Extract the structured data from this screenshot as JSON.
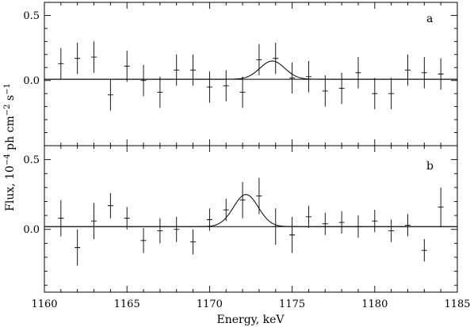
{
  "chart_data": {
    "type": "scatter",
    "xlabel": "Energy, keV",
    "ylabel_main": "Flux, 10",
    "ylabel_exp": "−4",
    "ylabel_units": " ph cm",
    "ylabel_cm_exp": "−2",
    "ylabel_s": " s",
    "ylabel_s_exp": "−1",
    "xlim": [
      1160,
      1185
    ],
    "x_ticks": [
      1160,
      1165,
      1170,
      1175,
      1180,
      1185
    ],
    "x_tick_labels": [
      "1160",
      "1165",
      "1170",
      "1175",
      "1180",
      "1185"
    ],
    "panels": [
      {
        "label": "a",
        "ylim": [
          -0.5,
          0.6
        ],
        "y_ticks": [
          0.5,
          0.0
        ],
        "y_tick_labels": [
          "0.5",
          "0.0"
        ],
        "baseline": 0.01,
        "line": {
          "center": 1173.8,
          "amplitude": 0.14,
          "sigma": 0.75
        },
        "points": [
          {
            "x": 1161,
            "y": 0.13,
            "err": 0.12
          },
          {
            "x": 1162,
            "y": 0.17,
            "err": 0.12
          },
          {
            "x": 1163,
            "y": 0.18,
            "err": 0.12
          },
          {
            "x": 1164,
            "y": -0.11,
            "err": 0.12
          },
          {
            "x": 1165,
            "y": 0.11,
            "err": 0.12
          },
          {
            "x": 1166,
            "y": 0.0,
            "err": 0.12
          },
          {
            "x": 1167,
            "y": -0.09,
            "err": 0.12
          },
          {
            "x": 1168,
            "y": 0.08,
            "err": 0.12
          },
          {
            "x": 1169,
            "y": 0.08,
            "err": 0.12
          },
          {
            "x": 1170,
            "y": -0.05,
            "err": 0.12
          },
          {
            "x": 1171,
            "y": -0.04,
            "err": 0.12
          },
          {
            "x": 1172,
            "y": -0.09,
            "err": 0.12
          },
          {
            "x": 1173,
            "y": 0.16,
            "err": 0.12
          },
          {
            "x": 1174,
            "y": 0.17,
            "err": 0.12
          },
          {
            "x": 1175,
            "y": 0.02,
            "err": 0.12
          },
          {
            "x": 1176,
            "y": 0.03,
            "err": 0.12
          },
          {
            "x": 1177,
            "y": -0.08,
            "err": 0.12
          },
          {
            "x": 1178,
            "y": -0.06,
            "err": 0.12
          },
          {
            "x": 1179,
            "y": 0.06,
            "err": 0.12
          },
          {
            "x": 1180,
            "y": -0.1,
            "err": 0.12
          },
          {
            "x": 1181,
            "y": -0.1,
            "err": 0.12
          },
          {
            "x": 1182,
            "y": 0.08,
            "err": 0.12
          },
          {
            "x": 1183,
            "y": 0.06,
            "err": 0.12
          },
          {
            "x": 1184,
            "y": 0.05,
            "err": 0.12
          }
        ]
      },
      {
        "label": "b",
        "ylim": [
          -0.45,
          0.6
        ],
        "y_ticks": [
          0.5,
          0.0
        ],
        "y_tick_labels": [
          "0.5",
          "0.0"
        ],
        "baseline": 0.02,
        "line": {
          "center": 1172.2,
          "amplitude": 0.23,
          "sigma": 0.75
        },
        "points": [
          {
            "x": 1161,
            "y": 0.08,
            "err": 0.13
          },
          {
            "x": 1162,
            "y": -0.13,
            "err": 0.13
          },
          {
            "x": 1163,
            "y": 0.06,
            "err": 0.13
          },
          {
            "x": 1164,
            "y": 0.17,
            "err": 0.09
          },
          {
            "x": 1165,
            "y": 0.08,
            "err": 0.08
          },
          {
            "x": 1166,
            "y": -0.08,
            "err": 0.09
          },
          {
            "x": 1167,
            "y": -0.01,
            "err": 0.09
          },
          {
            "x": 1168,
            "y": 0.0,
            "err": 0.09
          },
          {
            "x": 1169,
            "y": -0.09,
            "err": 0.09
          },
          {
            "x": 1170,
            "y": 0.07,
            "err": 0.08
          },
          {
            "x": 1171,
            "y": 0.14,
            "err": 0.08
          },
          {
            "x": 1172,
            "y": 0.21,
            "err": 0.13
          },
          {
            "x": 1173,
            "y": 0.24,
            "err": 0.13
          },
          {
            "x": 1174,
            "y": 0.02,
            "err": 0.13
          },
          {
            "x": 1175,
            "y": -0.04,
            "err": 0.13
          },
          {
            "x": 1176,
            "y": 0.09,
            "err": 0.08
          },
          {
            "x": 1177,
            "y": 0.04,
            "err": 0.08
          },
          {
            "x": 1178,
            "y": 0.05,
            "err": 0.08
          },
          {
            "x": 1179,
            "y": 0.02,
            "err": 0.08
          },
          {
            "x": 1180,
            "y": 0.06,
            "err": 0.08
          },
          {
            "x": 1181,
            "y": -0.01,
            "err": 0.08
          },
          {
            "x": 1182,
            "y": 0.03,
            "err": 0.08
          },
          {
            "x": 1183,
            "y": -0.15,
            "err": 0.08
          },
          {
            "x": 1184,
            "y": 0.16,
            "err": 0.14
          }
        ]
      }
    ]
  }
}
